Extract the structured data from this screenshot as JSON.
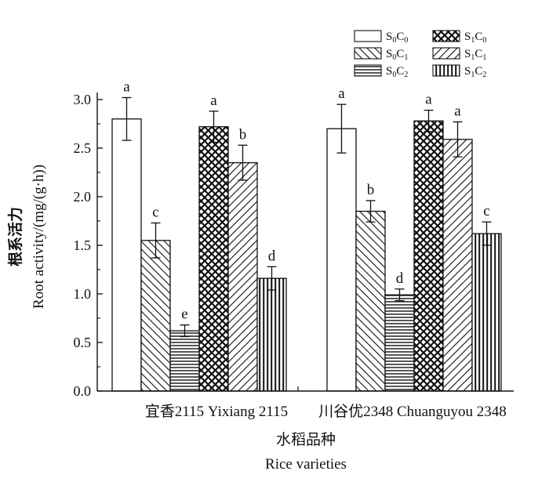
{
  "chart_data": {
    "type": "bar",
    "title": "",
    "categories": [
      "宜香2115 Yixiang 2115",
      "川谷优2348 Chuanguyou 2348"
    ],
    "xlabel_cn": "水稻品种",
    "xlabel_en": "Rice varieties",
    "ylabel_cn": "根系活力",
    "ylabel_en": "Root activity/(mg/(g·h))",
    "ylim": [
      0,
      3.0
    ],
    "yticks": [
      "0.0",
      "0.5",
      "1.0",
      "1.5",
      "2.0",
      "2.5",
      "3.0"
    ],
    "grid": false,
    "legend_position": "top-right",
    "series": [
      {
        "name": "S0C0",
        "label_main": "S",
        "label_sub1": "0",
        "label_mid": "C",
        "label_sub2": "0",
        "pattern": "white",
        "values": [
          2.8,
          2.7
        ],
        "errors": [
          0.22,
          0.25
        ],
        "letters": [
          "a",
          "a"
        ]
      },
      {
        "name": "S0C1",
        "label_main": "S",
        "label_sub1": "0",
        "label_mid": "C",
        "label_sub2": "1",
        "pattern": "diag-right",
        "values": [
          1.55,
          1.85
        ],
        "errors": [
          0.18,
          0.11
        ],
        "letters": [
          "c",
          "b"
        ]
      },
      {
        "name": "S0C2",
        "label_main": "S",
        "label_sub1": "0",
        "label_mid": "C",
        "label_sub2": "2",
        "pattern": "horizontal",
        "values": [
          0.62,
          0.99
        ],
        "errors": [
          0.06,
          0.06
        ],
        "letters": [
          "e",
          "d"
        ]
      },
      {
        "name": "S1C0",
        "label_main": "S",
        "label_sub1": "1",
        "label_mid": "C",
        "label_sub2": "0",
        "pattern": "crosshatch",
        "values": [
          2.72,
          2.78
        ],
        "errors": [
          0.16,
          0.11
        ],
        "letters": [
          "a",
          "a"
        ]
      },
      {
        "name": "S1C1",
        "label_main": "S",
        "label_sub1": "1",
        "label_mid": "C",
        "label_sub2": "1",
        "pattern": "diag-left",
        "values": [
          2.35,
          2.59
        ],
        "errors": [
          0.18,
          0.18
        ],
        "letters": [
          "b",
          "a"
        ]
      },
      {
        "name": "S1C2",
        "label_main": "S",
        "label_sub1": "1",
        "label_mid": "C",
        "label_sub2": "2",
        "pattern": "vertical",
        "values": [
          1.16,
          1.62
        ],
        "errors": [
          0.12,
          0.12
        ],
        "letters": [
          "d",
          "c"
        ]
      }
    ]
  }
}
